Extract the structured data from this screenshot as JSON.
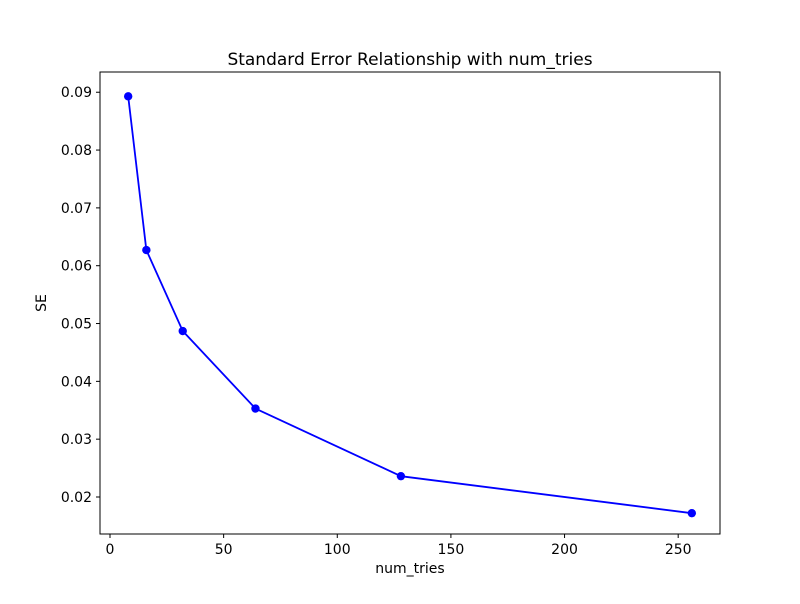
{
  "chart_data": {
    "type": "line",
    "title": "Standard Error Relationship with num_tries",
    "xlabel": "num_tries",
    "ylabel": "SE",
    "x": [
      8,
      16,
      32,
      64,
      128,
      256
    ],
    "y": [
      0.0893,
      0.0627,
      0.0487,
      0.0353,
      0.0236,
      0.0172
    ],
    "series": [
      {
        "name": "SE",
        "x": [
          8,
          16,
          32,
          64,
          128,
          256
        ],
        "values": [
          0.0893,
          0.0627,
          0.0487,
          0.0353,
          0.0236,
          0.0172
        ]
      }
    ],
    "xticks": [
      0,
      50,
      100,
      150,
      200,
      250
    ],
    "yticks": [
      0.02,
      0.03,
      0.04,
      0.05,
      0.06,
      0.07,
      0.08,
      0.09
    ],
    "xlim": [
      -4.4,
      268.4
    ],
    "ylim": [
      0.0136,
      0.0935
    ],
    "grid": false,
    "legend": "none",
    "line_color": "#0000ff",
    "marker": "circle",
    "axis_color": "#000000",
    "background_color": "#ffffff"
  }
}
